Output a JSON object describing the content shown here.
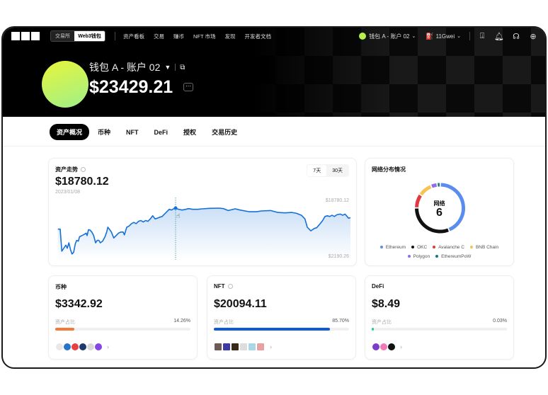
{
  "nav": {
    "toggle": [
      "交易所",
      "Web3钱包"
    ],
    "items": [
      "资产看板",
      "交易",
      "赚币",
      "NFT 市场",
      "发现",
      "开发者文档"
    ],
    "account": "钱包 A - 账户 02",
    "gas": "11Gwei",
    "icons": [
      "download-icon",
      "bell-icon",
      "headset-icon",
      "globe-icon"
    ]
  },
  "wallet": {
    "name": "钱包 A - 账户 02",
    "total": "$23429.21",
    "more": "···"
  },
  "tabs": [
    "资产概况",
    "币种",
    "NFT",
    "DeFi",
    "授权",
    "交易历史"
  ],
  "trend": {
    "title": "资产走势",
    "value": "$18780.12",
    "date": "2023/01/08",
    "ranges": [
      "7天",
      "30天"
    ],
    "max_label": "$18780.12",
    "min_label": "$2190.26"
  },
  "chart_data": {
    "type": "area",
    "ylim": [
      2190.26,
      18780.12
    ],
    "color": "#1570d8",
    "hover_index": 59,
    "values": [
      11198,
      11198,
      3268,
      4561,
      5423,
      4302,
      6285,
      3699,
      2233,
      2837,
      5854,
      7147,
      6888,
      8440,
      8871,
      9302,
      9733,
      8871,
      11026,
      10853,
      10164,
      8871,
      6285,
      7147,
      7147,
      6285,
      6888,
      8440,
      10164,
      11888,
      11026,
      10164,
      8009,
      8871,
      9733,
      10164,
      10164,
      9129,
      11888,
      12319,
      13181,
      13612,
      13181,
      14043,
      14301,
      13784,
      14301,
      14043,
      14905,
      16025,
      14905,
      15163,
      15508,
      15767,
      16629,
      17491,
      18353,
      18094,
      18611,
      18780,
      18353,
      18094,
      18353,
      18611,
      18353,
      18353,
      18525,
      18697,
      18780,
      18611,
      17922,
      18525,
      18094,
      17491,
      17491,
      17749,
      17922,
      17232,
      17060,
      17232,
      16887,
      16198,
      14905,
      11888,
      10595,
      11457,
      11715,
      13181,
      14301,
      15767,
      16025,
      15767,
      16198,
      15767,
      16370,
      16629,
      16198,
      16629,
      15163,
      15336
    ]
  },
  "network": {
    "title": "网络分布情况",
    "center_label": "网络",
    "count": "6",
    "chart_data": {
      "type": "pie",
      "donut": true,
      "series": [
        {
          "name": "Ethereum",
          "value": 42,
          "color": "#5b8def"
        },
        {
          "name": "OKC",
          "value": 30,
          "color": "#111111"
        },
        {
          "name": "Avalanche C",
          "value": 9,
          "color": "#e03a3e"
        },
        {
          "name": "BNB Chain",
          "value": 9,
          "color": "#f5c451"
        },
        {
          "name": "Polygon",
          "value": 4,
          "color": "#8f6ee8"
        },
        {
          "name": "EthereumPoW",
          "value": 2,
          "color": "#117a80"
        }
      ]
    }
  },
  "cards": [
    {
      "title": "币种",
      "value": "$3342.92",
      "share_label": "资产占比",
      "share": "14.26%",
      "pct": 14.26,
      "color": "#f2793a",
      "info": false,
      "icons": [
        "#e8e8e8",
        "#2775ca",
        "#e84142",
        "#1e3a6a",
        "#d8d8d8",
        "#8247e5"
      ],
      "square": false
    },
    {
      "title": "NFT",
      "value": "$20094.11",
      "share_label": "资产占比",
      "share": "85.70%",
      "pct": 85.7,
      "color": "#0f5ad8",
      "info": true,
      "icons": [
        "#6d5a57",
        "#3d3aa8",
        "#3a2a1a",
        "#dddddd",
        "#a8d8e8",
        "#e8a0a0"
      ],
      "square": true
    },
    {
      "title": "DeFi",
      "value": "$8.49",
      "share_label": "资产占比",
      "share": "0.03%",
      "pct": 0.03,
      "color": "#1ad09a",
      "info": false,
      "icons": [
        "#7a3ec8",
        "#f07ab8",
        "#111111"
      ],
      "square": false
    }
  ]
}
